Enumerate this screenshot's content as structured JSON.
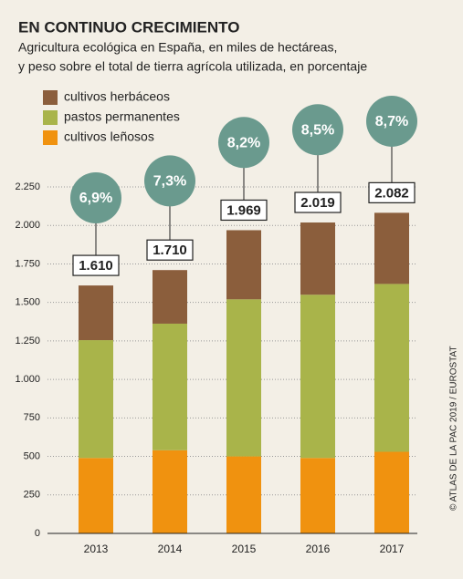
{
  "chart_data": {
    "type": "stacked_bar",
    "title": "EN CONTINUO CRECIMIENTO",
    "subtitle": [
      "Agricultura ecológica en España, en miles de hectáreas,",
      "y peso sobre el total de tierra agrícola utilizada, en porcentaje"
    ],
    "categories": [
      "2013",
      "2014",
      "2015",
      "2016",
      "2017"
    ],
    "series": [
      {
        "name": "cultivos leñosos",
        "color": "#f0920f",
        "values": [
          490,
          540,
          500,
          490,
          530
        ]
      },
      {
        "name": "pastos permanentes",
        "color": "#a9b44a",
        "values": [
          765,
          822,
          1020,
          1060,
          1090
        ]
      },
      {
        "name": "cultivos herbáceos",
        "color": "#8b5e3c",
        "values": [
          355,
          348,
          449,
          469,
          462
        ]
      }
    ],
    "totals": {
      "values": [
        1610,
        1710,
        1969,
        2019,
        2082
      ],
      "value_labels": [
        "1.610",
        "1.710",
        "1.969",
        "2.019",
        "2.082"
      ]
    },
    "shares": {
      "color": "#6a9a8e",
      "values": [
        6.9,
        7.3,
        8.2,
        8.5,
        8.7
      ],
      "value_labels": [
        "6,9%",
        "7,3%",
        "8,2%",
        "8,5%",
        "8,7%"
      ]
    },
    "ylim": [
      0,
      2250
    ],
    "yticks": [
      0,
      250,
      500,
      750,
      {
        "value": 1000,
        "label": "1.000"
      },
      {
        "value": 1250,
        "label": "1.250"
      },
      {
        "value": 1500,
        "label": "1.500"
      },
      {
        "value": 1750,
        "label": "1.750"
      },
      {
        "value": 2000,
        "label": "2.000"
      },
      {
        "value": 2250,
        "label": "2.250"
      }
    ],
    "grid": true,
    "source": "© ATLAS DE LA PAC 2019 / EUROSTAT"
  }
}
